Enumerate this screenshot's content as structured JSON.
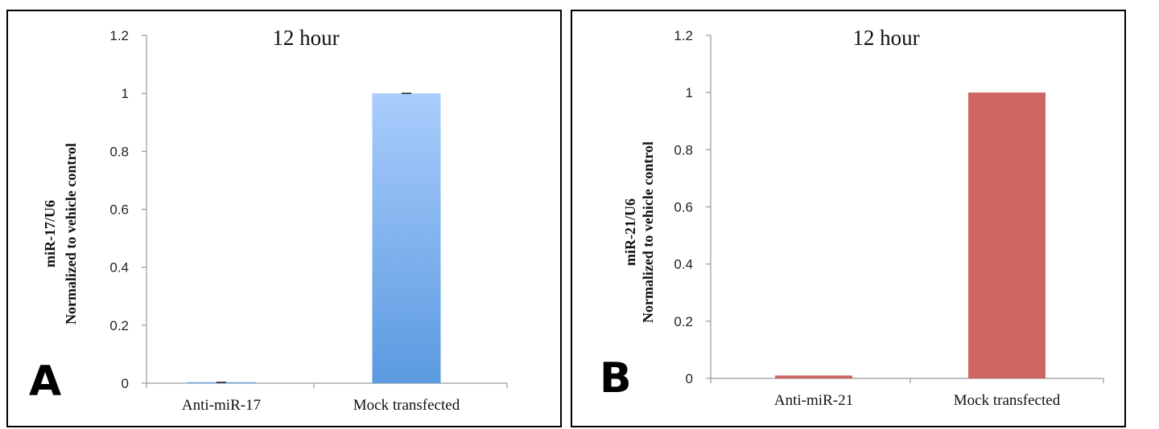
{
  "chart_data": [
    {
      "type": "bar",
      "panel_label": "A",
      "title": "12 hour",
      "ylabel_lines": [
        "miR-17/U6",
        "Normalized to vehicle control"
      ],
      "xlabel": "",
      "categories": [
        "Anti-miR-17",
        "Mock transfected"
      ],
      "values": [
        0.003,
        1.0
      ],
      "error": [
        0.001,
        0.001
      ],
      "ylim": [
        0,
        1.2
      ],
      "yticks": [
        0,
        0.2,
        0.4,
        0.6,
        0.8,
        1,
        1.2
      ],
      "ytick_labels": [
        "0",
        "0.2",
        "0.4",
        "0.6",
        "0.8",
        "1",
        "1.2"
      ],
      "bar_color": "#5b9ae0",
      "bar_color_top": "#a9cdfc",
      "gradient": true,
      "grid": false
    },
    {
      "type": "bar",
      "panel_label": "B",
      "title": "12 hour",
      "ylabel_lines": [
        "miR-21/U6",
        "Normalized to vehicle control"
      ],
      "xlabel": "",
      "categories": [
        "Anti-miR-21",
        "Mock transfected"
      ],
      "values": [
        0.01,
        1.0
      ],
      "error": [
        0,
        0
      ],
      "ylim": [
        0,
        1.2
      ],
      "yticks": [
        0,
        0.2,
        0.4,
        0.6,
        0.8,
        1,
        1.2
      ],
      "ytick_labels": [
        "0",
        "0.2",
        "0.4",
        "0.6",
        "0.8",
        "1",
        "1.2"
      ],
      "bar_color": "#cd6660",
      "bar_color_top": "#cd6660",
      "gradient": false,
      "grid": false
    }
  ]
}
